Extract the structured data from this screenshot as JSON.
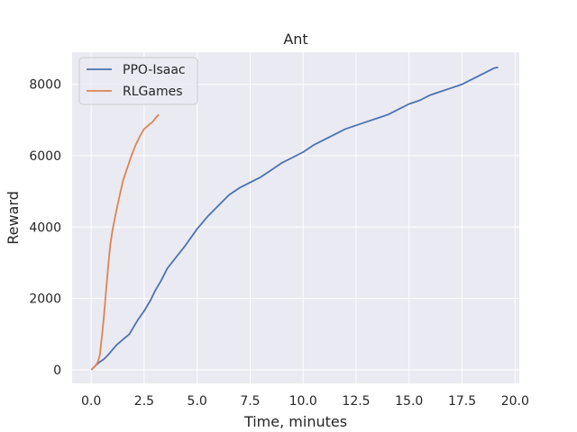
{
  "chart_data": {
    "type": "line",
    "title": "Ant",
    "xlabel": "Time, minutes",
    "ylabel": "Reward",
    "xlim": [
      -0.9,
      20.2
    ],
    "ylim": [
      -380,
      8900
    ],
    "xticks": [
      0.0,
      2.5,
      5.0,
      7.5,
      10.0,
      12.5,
      15.0,
      17.5,
      20.0
    ],
    "xtick_labels": [
      "0.0",
      "2.5",
      "5.0",
      "7.5",
      "10.0",
      "12.5",
      "15.0",
      "17.5",
      "20.0"
    ],
    "yticks": [
      0,
      2000,
      4000,
      6000,
      8000
    ],
    "ytick_labels": [
      "0",
      "2000",
      "4000",
      "6000",
      "8000"
    ],
    "grid": true,
    "legend_position": "top-left",
    "series": [
      {
        "name": "PPO-Isaac",
        "color": "#4c72b0",
        "points": [
          [
            0.0,
            0
          ],
          [
            0.2,
            120
          ],
          [
            0.4,
            220
          ],
          [
            0.6,
            300
          ],
          [
            0.8,
            420
          ],
          [
            1.0,
            560
          ],
          [
            1.2,
            700
          ],
          [
            1.5,
            850
          ],
          [
            1.8,
            1000
          ],
          [
            2.0,
            1200
          ],
          [
            2.2,
            1400
          ],
          [
            2.5,
            1650
          ],
          [
            2.8,
            1950
          ],
          [
            3.0,
            2200
          ],
          [
            3.3,
            2500
          ],
          [
            3.6,
            2850
          ],
          [
            4.0,
            3150
          ],
          [
            4.4,
            3450
          ],
          [
            5.0,
            3950
          ],
          [
            5.5,
            4300
          ],
          [
            6.0,
            4600
          ],
          [
            6.5,
            4900
          ],
          [
            7.0,
            5100
          ],
          [
            7.5,
            5250
          ],
          [
            8.0,
            5400
          ],
          [
            8.5,
            5600
          ],
          [
            9.0,
            5800
          ],
          [
            9.5,
            5950
          ],
          [
            10.0,
            6100
          ],
          [
            10.5,
            6300
          ],
          [
            11.0,
            6450
          ],
          [
            11.5,
            6600
          ],
          [
            12.0,
            6750
          ],
          [
            12.5,
            6850
          ],
          [
            13.0,
            6950
          ],
          [
            13.5,
            7050
          ],
          [
            14.0,
            7150
          ],
          [
            14.5,
            7300
          ],
          [
            15.0,
            7450
          ],
          [
            15.5,
            7550
          ],
          [
            16.0,
            7700
          ],
          [
            16.5,
            7800
          ],
          [
            17.0,
            7900
          ],
          [
            17.5,
            8000
          ],
          [
            18.0,
            8150
          ],
          [
            18.5,
            8300
          ],
          [
            19.0,
            8450
          ],
          [
            19.2,
            8480
          ]
        ]
      },
      {
        "name": "RLGames",
        "color": "#dd8452",
        "points": [
          [
            0.0,
            0
          ],
          [
            0.1,
            60
          ],
          [
            0.2,
            120
          ],
          [
            0.3,
            200
          ],
          [
            0.4,
            400
          ],
          [
            0.5,
            900
          ],
          [
            0.6,
            1500
          ],
          [
            0.7,
            2200
          ],
          [
            0.8,
            2900
          ],
          [
            0.9,
            3500
          ],
          [
            1.0,
            3900
          ],
          [
            1.1,
            4200
          ],
          [
            1.2,
            4500
          ],
          [
            1.35,
            4900
          ],
          [
            1.5,
            5300
          ],
          [
            1.7,
            5650
          ],
          [
            1.9,
            6000
          ],
          [
            2.1,
            6300
          ],
          [
            2.3,
            6550
          ],
          [
            2.5,
            6750
          ],
          [
            2.7,
            6850
          ],
          [
            2.9,
            6950
          ],
          [
            3.1,
            7100
          ],
          [
            3.2,
            7150
          ]
        ]
      }
    ]
  }
}
